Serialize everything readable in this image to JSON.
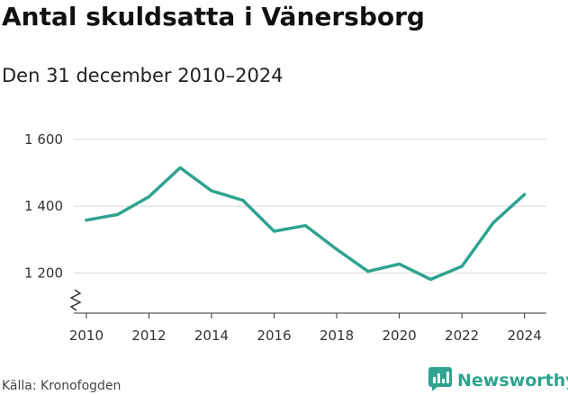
{
  "chart_data": {
    "type": "line",
    "title": "Antal skuldsatta i Vänersborg",
    "subtitle": "Den 31 december 2010–2024",
    "xlabel": "",
    "ylabel": "",
    "x": [
      2010,
      2011,
      2012,
      2013,
      2014,
      2015,
      2016,
      2017,
      2018,
      2019,
      2020,
      2021,
      2022,
      2023,
      2024
    ],
    "series": [
      {
        "name": "Antal skuldsatta",
        "values": [
          1358,
          1375,
          1428,
          1515,
          1446,
          1418,
          1325,
          1342,
          1271,
          1205,
          1227,
          1181,
          1220,
          1350,
          1435
        ]
      }
    ],
    "xlim": [
      2009.6,
      2024.7
    ],
    "ylim": [
      1080,
      1640
    ],
    "y_ticks": [
      1200,
      1400,
      1600
    ],
    "y_tick_labels": [
      "1 200",
      "1 400",
      "1 600"
    ],
    "x_ticks": [
      2010,
      2012,
      2014,
      2016,
      2018,
      2020,
      2022,
      2024
    ],
    "x_tick_labels": [
      "2010",
      "2012",
      "2014",
      "2016",
      "2018",
      "2020",
      "2022",
      "2024"
    ],
    "axis_break": true,
    "grid": true,
    "line_color": "#2fa38f"
  },
  "footer": {
    "source": "Källa: Kronofogden",
    "brand": "Newsworthy"
  },
  "colors": {
    "accent": "#2fa38f",
    "grid": "#d9d9d9",
    "axis": "#333333"
  },
  "icons": {
    "brand_logo": "bar-chart-icon"
  }
}
